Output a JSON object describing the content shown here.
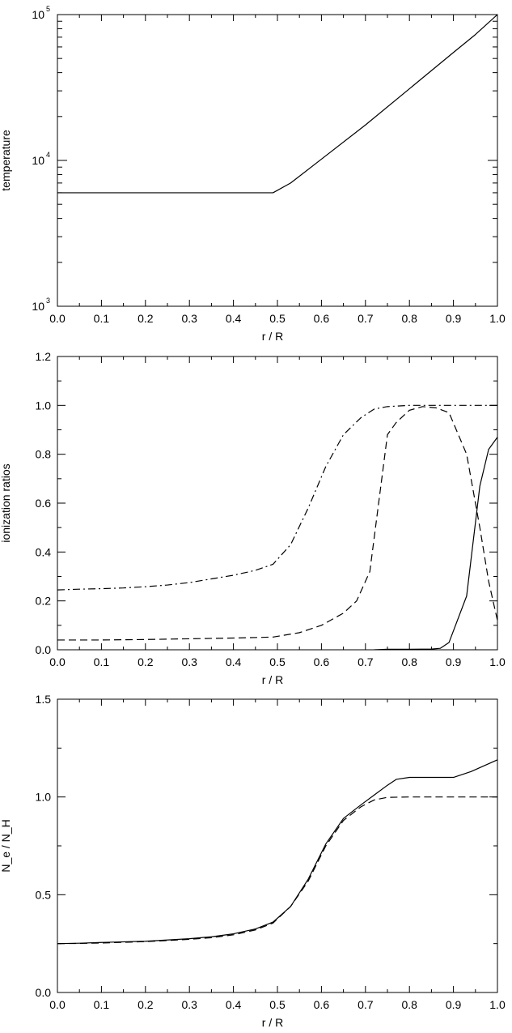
{
  "chart_data": [
    {
      "type": "line",
      "ylabel": "temperature",
      "xlabel": "r / R",
      "xlim": [
        0,
        1
      ],
      "ylim": [
        1000,
        100000
      ],
      "yscale": "log",
      "x_ticks": [
        "0.0",
        "0.1",
        "0.2",
        "0.3",
        "0.4",
        "0.5",
        "0.6",
        "0.7",
        "0.8",
        "0.9",
        "1.0"
      ],
      "y_ticks": [
        {
          "value": 1000,
          "base": "10",
          "exp": "3"
        },
        {
          "value": 10000,
          "base": "10",
          "exp": "4"
        },
        {
          "value": 100000,
          "base": "10",
          "exp": "5"
        }
      ],
      "grid": false,
      "series": [
        {
          "style": "solid",
          "x": [
            0,
            0.1,
            0.2,
            0.3,
            0.4,
            0.49,
            0.53,
            0.6,
            0.7,
            0.8,
            0.9,
            0.95,
            1.0
          ],
          "y": [
            6000,
            6000,
            6000,
            6000,
            6000,
            6000,
            7000,
            10200,
            17500,
            31000,
            55000,
            73000,
            100000
          ]
        }
      ]
    },
    {
      "type": "line",
      "ylabel": "ionization ratios",
      "xlabel": "r / R",
      "xlim": [
        0,
        1
      ],
      "ylim": [
        0,
        1.2
      ],
      "x_ticks": [
        "0.0",
        "0.1",
        "0.2",
        "0.3",
        "0.4",
        "0.5",
        "0.6",
        "0.7",
        "0.8",
        "0.9",
        "1.0"
      ],
      "y_ticks": [
        "0.0",
        "0.2",
        "0.4",
        "0.6",
        "0.8",
        "1.0",
        "1.2"
      ],
      "grid": false,
      "series": [
        {
          "style": "dashdot",
          "x": [
            0,
            0.05,
            0.1,
            0.15,
            0.2,
            0.25,
            0.3,
            0.35,
            0.4,
            0.45,
            0.49,
            0.53,
            0.57,
            0.61,
            0.65,
            0.69,
            0.72,
            0.75,
            0.8,
            0.85,
            0.9,
            0.95,
            1.0
          ],
          "y": [
            0.245,
            0.248,
            0.25,
            0.253,
            0.258,
            0.265,
            0.275,
            0.29,
            0.305,
            0.325,
            0.35,
            0.43,
            0.58,
            0.75,
            0.88,
            0.95,
            0.985,
            0.995,
            1.0,
            1.0,
            1.0,
            1.0,
            1.0
          ]
        },
        {
          "style": "dashed",
          "x": [
            0,
            0.1,
            0.2,
            0.3,
            0.4,
            0.49,
            0.55,
            0.6,
            0.65,
            0.68,
            0.71,
            0.73,
            0.75,
            0.77,
            0.8,
            0.83,
            0.86,
            0.89,
            0.93,
            0.96,
            0.98,
            1.0
          ],
          "y": [
            0.04,
            0.04,
            0.042,
            0.045,
            0.048,
            0.052,
            0.07,
            0.1,
            0.15,
            0.2,
            0.32,
            0.6,
            0.88,
            0.93,
            0.98,
            0.995,
            0.99,
            0.97,
            0.8,
            0.5,
            0.28,
            0.12
          ]
        },
        {
          "style": "solid",
          "x": [
            0.72,
            0.75,
            0.8,
            0.85,
            0.87,
            0.89,
            0.93,
            0.96,
            0.98,
            1.0
          ],
          "y": [
            0.0,
            0.002,
            0.002,
            0.003,
            0.006,
            0.03,
            0.22,
            0.67,
            0.82,
            0.87
          ]
        }
      ]
    },
    {
      "type": "line",
      "ylabel": "N_e / N_H",
      "xlabel": "r / R",
      "xlim": [
        0,
        1
      ],
      "ylim": [
        0,
        1.5
      ],
      "x_ticks": [
        "0.0",
        "0.1",
        "0.2",
        "0.3",
        "0.4",
        "0.5",
        "0.6",
        "0.7",
        "0.8",
        "0.9",
        "1.0"
      ],
      "y_ticks": [
        "0.0",
        "0.5",
        "1.0",
        "1.5"
      ],
      "grid": false,
      "series": [
        {
          "style": "solid",
          "x": [
            0,
            0.05,
            0.1,
            0.2,
            0.3,
            0.35,
            0.4,
            0.45,
            0.49,
            0.53,
            0.57,
            0.61,
            0.65,
            0.69,
            0.72,
            0.75,
            0.77,
            0.8,
            0.85,
            0.9,
            0.94,
            1.0
          ],
          "y": [
            0.25,
            0.252,
            0.256,
            0.262,
            0.275,
            0.285,
            0.3,
            0.325,
            0.36,
            0.44,
            0.58,
            0.76,
            0.89,
            0.96,
            1.01,
            1.06,
            1.09,
            1.1,
            1.1,
            1.1,
            1.13,
            1.19
          ]
        },
        {
          "style": "dashed",
          "x": [
            0,
            0.05,
            0.1,
            0.2,
            0.3,
            0.35,
            0.4,
            0.45,
            0.49,
            0.53,
            0.57,
            0.61,
            0.65,
            0.69,
            0.72,
            0.75,
            0.8,
            0.9,
            1.0
          ],
          "y": [
            0.25,
            0.251,
            0.253,
            0.26,
            0.272,
            0.28,
            0.295,
            0.32,
            0.355,
            0.44,
            0.57,
            0.75,
            0.88,
            0.95,
            0.985,
            0.998,
            1.0,
            1.0,
            1.0
          ]
        }
      ]
    }
  ]
}
